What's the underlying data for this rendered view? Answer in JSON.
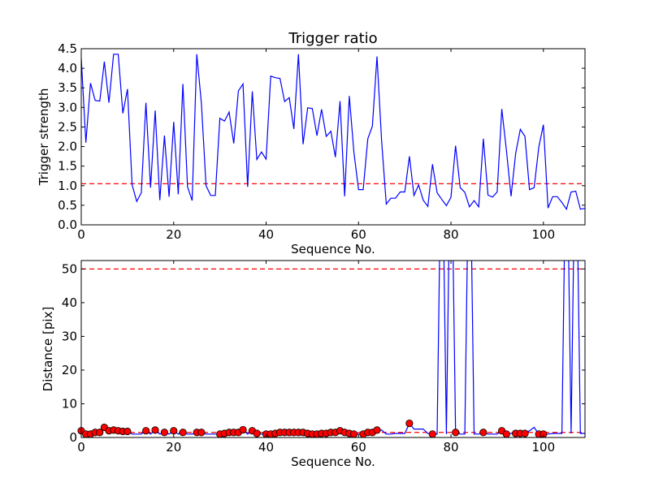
{
  "chart_data": [
    {
      "type": "line",
      "title": "Trigger ratio",
      "xlabel": "Sequence No.",
      "ylabel": "Trigger strength",
      "xlim": [
        0,
        109
      ],
      "ylim": [
        0,
        4.5
      ],
      "xticks": [
        "0",
        "20",
        "40",
        "60",
        "80",
        "100"
      ],
      "yticks": [
        "0.0",
        "0.5",
        "1.0",
        "1.5",
        "2.0",
        "2.5",
        "3.0",
        "3.5",
        "4.0",
        "4.5"
      ],
      "grid": false,
      "colors": {
        "line": "#0000ff",
        "threshold": "#ff0000"
      },
      "threshold": 1.05,
      "series": [
        {
          "x": [
            0,
            1,
            2,
            3,
            4,
            5,
            6,
            7,
            8,
            9,
            10,
            11,
            12,
            13,
            14,
            15,
            16,
            17,
            18,
            19,
            20,
            21,
            22,
            23,
            24,
            25,
            26,
            27,
            28,
            29,
            30,
            31,
            32,
            33,
            34,
            35,
            36,
            37,
            38,
            39,
            40,
            41,
            42,
            43,
            44,
            45,
            46,
            47,
            48,
            49,
            50,
            51,
            52,
            53,
            54,
            55,
            56,
            57,
            58,
            59,
            60,
            61,
            62,
            63,
            64,
            65,
            66,
            67,
            68,
            69,
            70,
            71,
            72,
            73,
            74,
            75,
            76,
            77,
            78,
            79,
            80,
            81,
            82,
            83,
            84,
            85,
            86,
            87,
            88,
            89,
            90,
            91,
            92,
            93,
            94,
            95,
            96,
            97,
            98,
            99,
            100,
            101,
            102,
            103,
            104,
            105,
            106,
            107,
            108,
            109
          ],
          "values": [
            4.25,
            2.1,
            3.62,
            3.18,
            3.16,
            4.17,
            3.12,
            4.36,
            4.36,
            2.85,
            3.47,
            1.02,
            0.6,
            0.82,
            3.12,
            0.95,
            2.92,
            0.63,
            2.28,
            0.72,
            2.63,
            0.78,
            3.6,
            0.97,
            0.62,
            4.36,
            3.1,
            1.0,
            0.75,
            0.75,
            2.72,
            2.65,
            2.88,
            2.08,
            3.42,
            3.6,
            0.97,
            3.41,
            1.67,
            1.86,
            1.68,
            3.8,
            3.76,
            3.74,
            3.15,
            3.25,
            2.45,
            4.36,
            2.06,
            2.99,
            2.97,
            2.28,
            2.95,
            2.26,
            2.39,
            1.73,
            3.16,
            0.73,
            3.29,
            1.85,
            0.9,
            0.9,
            2.2,
            2.52,
            4.3,
            2.14,
            0.53,
            0.68,
            0.68,
            0.84,
            0.84,
            1.75,
            0.75,
            1.02,
            0.63,
            0.47,
            1.55,
            0.82,
            0.65,
            0.49,
            0.7,
            2.02,
            0.95,
            0.83,
            0.46,
            0.62,
            0.46,
            2.2,
            0.76,
            0.71,
            0.84,
            2.96,
            1.9,
            0.73,
            1.83,
            2.44,
            2.26,
            0.9,
            0.95,
            1.98,
            2.56,
            0.43,
            0.72,
            0.72,
            0.57,
            0.4,
            0.84,
            0.86,
            0.4,
            0.42
          ]
        }
      ]
    },
    {
      "type": "line",
      "title": "",
      "xlabel": "Sequence No.",
      "ylabel": "Distance [pix]",
      "xlim": [
        0,
        109
      ],
      "ylim": [
        0,
        52.5
      ],
      "xticks": [
        "0",
        "20",
        "40",
        "60",
        "80",
        "100"
      ],
      "yticks": [
        "0",
        "10",
        "20",
        "30",
        "40",
        "50"
      ],
      "grid": false,
      "colors": {
        "line": "#0000ff",
        "markers": "#ff0000",
        "threshold": "#ff0000"
      },
      "thresholds": [
        50,
        1.5
      ],
      "series": [
        {
          "x": [
            0,
            1,
            2,
            3,
            4,
            5,
            6,
            7,
            8,
            9,
            10,
            11,
            12,
            13,
            14,
            15,
            16,
            17,
            18,
            19,
            20,
            21,
            22,
            23,
            24,
            25,
            26,
            27,
            28,
            29,
            30,
            31,
            32,
            33,
            34,
            35,
            36,
            37,
            38,
            39,
            40,
            41,
            42,
            43,
            44,
            45,
            46,
            47,
            48,
            49,
            50,
            51,
            52,
            53,
            54,
            55,
            56,
            57,
            58,
            59,
            60,
            61,
            62,
            63,
            64,
            65,
            66,
            67,
            68,
            69,
            70,
            71,
            72,
            73,
            74,
            75,
            76,
            77,
            78,
            79,
            80,
            81,
            82,
            83,
            84,
            85,
            86,
            87,
            88,
            89,
            90,
            91,
            92,
            93,
            94,
            95,
            96,
            97,
            98,
            99,
            100,
            101,
            102,
            103,
            104,
            105,
            106,
            107,
            108,
            109
          ],
          "values": [
            2.0,
            1.0,
            1.0,
            1.5,
            1.5,
            3.0,
            2.0,
            2.2,
            2.0,
            1.8,
            1.8,
            1.0,
            1.0,
            1.0,
            2.0,
            1.0,
            2.2,
            1.0,
            1.5,
            1.0,
            2.0,
            1.0,
            1.5,
            1.0,
            1.0,
            1.5,
            1.5,
            1.0,
            1.0,
            1.0,
            1.0,
            1.2,
            1.5,
            1.5,
            1.5,
            2.3,
            1.0,
            2.0,
            1.2,
            1.0,
            1.0,
            1.0,
            1.2,
            1.5,
            1.5,
            1.5,
            1.5,
            1.5,
            1.5,
            1.2,
            1.0,
            1.0,
            1.2,
            1.2,
            1.5,
            1.5,
            2.0,
            1.5,
            1.0,
            1.2,
            1.0,
            1.0,
            1.5,
            1.5,
            2.2,
            2.2,
            1.0,
            1.0,
            1.2,
            1.2,
            1.2,
            4.2,
            2.5,
            2.5,
            2.5,
            1.2,
            1.0,
            1.0,
            100,
            1.0,
            100,
            1.5,
            1.0,
            1.0,
            100,
            1.0,
            1.0,
            1.5,
            1.0,
            1.0,
            1.0,
            2.0,
            1.0,
            1.2,
            1.2,
            1.2,
            1.2,
            2.0,
            3.0,
            1.0,
            1.0,
            1.0,
            1.2,
            1.2,
            1.2,
            100,
            1.2,
            100,
            1.2,
            1.2
          ]
        }
      ],
      "markers": {
        "x": [
          0,
          1,
          2,
          3,
          4,
          5,
          6,
          7,
          8,
          9,
          10,
          14,
          16,
          18,
          20,
          22,
          25,
          26,
          30,
          31,
          32,
          33,
          34,
          35,
          37,
          38,
          40,
          41,
          42,
          43,
          44,
          45,
          46,
          47,
          48,
          49,
          50,
          51,
          52,
          53,
          54,
          55,
          56,
          57,
          58,
          59,
          61,
          62,
          63,
          64,
          71,
          76,
          81,
          87,
          91,
          92,
          94,
          95,
          96,
          99,
          100
        ],
        "values": [
          2.0,
          1.0,
          1.0,
          1.5,
          1.5,
          3.0,
          2.0,
          2.2,
          2.0,
          1.8,
          1.8,
          2.0,
          2.2,
          1.5,
          2.0,
          1.5,
          1.5,
          1.5,
          1.0,
          1.2,
          1.5,
          1.5,
          1.5,
          2.3,
          2.0,
          1.2,
          1.0,
          1.0,
          1.2,
          1.5,
          1.5,
          1.5,
          1.5,
          1.5,
          1.5,
          1.2,
          1.0,
          1.0,
          1.2,
          1.2,
          1.5,
          1.5,
          2.0,
          1.5,
          1.2,
          1.0,
          1.0,
          1.5,
          1.5,
          2.2,
          4.2,
          1.0,
          1.5,
          1.5,
          2.0,
          1.0,
          1.2,
          1.2,
          1.2,
          1.0,
          1.0
        ]
      }
    }
  ]
}
